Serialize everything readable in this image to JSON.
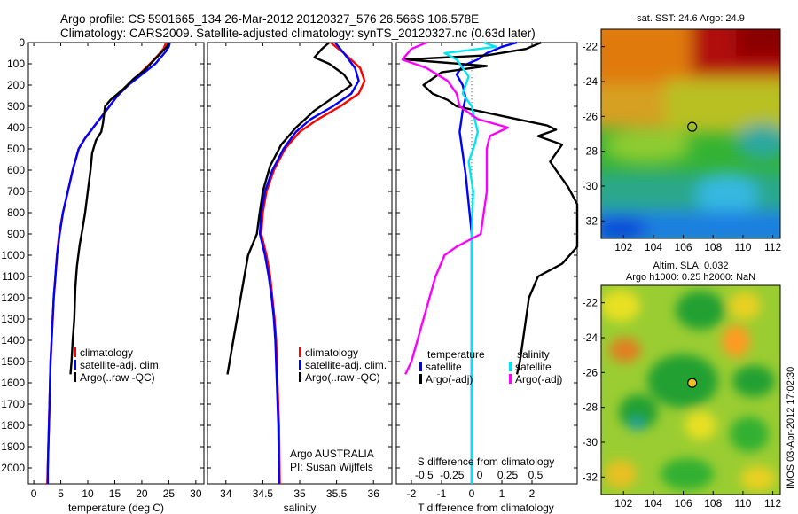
{
  "header": {
    "line1": "Argo profile: CS 5901665_134 26-Mar-2012 20120327_576 26.566S 106.578E",
    "line2": "Climatology: CARS2009. Satellite-adjusted climatology: synTS_20120327.nc (0.63d later)"
  },
  "colors": {
    "climatology": "#ff0000",
    "satellite": "#0000ff",
    "argo": "#000000",
    "sat_salinity": "#00e5ee",
    "argo_salinity": "#ff00ff"
  },
  "side_label": "IMOS 03-Apr-2012 17:02:30",
  "chart_data": [
    {
      "type": "line",
      "name": "temperature-profile",
      "xlabel": "temperature (deg C)",
      "ylim": [
        2075,
        0
      ],
      "xlim": [
        -1,
        31.5
      ],
      "xticks": [
        0,
        5,
        10,
        15,
        20,
        25,
        30
      ],
      "yticks": [
        0,
        100,
        200,
        300,
        400,
        500,
        600,
        700,
        800,
        900,
        1000,
        1100,
        1200,
        1300,
        1400,
        1500,
        1600,
        1700,
        1800,
        1900,
        2000
      ],
      "legend": [
        "climatology",
        "satellite-adj. clim.",
        "Argo(..raw -QC)"
      ],
      "series": [
        {
          "name": "climatology",
          "color": "#ff0000",
          "points": [
            [
              24.5,
              0
            ],
            [
              24,
              30
            ],
            [
              23,
              60
            ],
            [
              21.5,
              100
            ],
            [
              19.5,
              150
            ],
            [
              17.5,
              200
            ],
            [
              15.5,
              250
            ],
            [
              14,
              300
            ],
            [
              12.5,
              350
            ],
            [
              11,
              400
            ],
            [
              9.5,
              450
            ],
            [
              8.3,
              500
            ],
            [
              7.2,
              600
            ],
            [
              6.3,
              700
            ],
            [
              5.4,
              800
            ],
            [
              4.7,
              900
            ],
            [
              4.3,
              1000
            ],
            [
              4,
              1100
            ],
            [
              3.7,
              1200
            ],
            [
              3.5,
              1300
            ],
            [
              3.3,
              1400
            ],
            [
              3.1,
              1500
            ],
            [
              3,
              1600
            ],
            [
              2.9,
              1700
            ],
            [
              2.8,
              1800
            ],
            [
              2.7,
              1900
            ],
            [
              2.6,
              2000
            ],
            [
              2.5,
              2075
            ]
          ]
        },
        {
          "name": "satellite-adj. clim.",
          "color": "#0000ff",
          "points": [
            [
              25.2,
              0
            ],
            [
              25,
              20
            ],
            [
              24.5,
              40
            ],
            [
              23.5,
              70
            ],
            [
              22.5,
              100
            ],
            [
              20,
              150
            ],
            [
              17.5,
              200
            ],
            [
              15.5,
              250
            ],
            [
              14,
              300
            ],
            [
              12.5,
              350
            ],
            [
              11,
              400
            ],
            [
              9.5,
              450
            ],
            [
              8.3,
              500
            ],
            [
              7.2,
              600
            ],
            [
              6.3,
              700
            ],
            [
              5.4,
              800
            ],
            [
              4.8,
              900
            ],
            [
              4.3,
              1000
            ],
            [
              4,
              1100
            ],
            [
              3.7,
              1200
            ],
            [
              3.5,
              1300
            ],
            [
              3.3,
              1400
            ],
            [
              3.1,
              1500
            ],
            [
              3,
              1600
            ],
            [
              2.9,
              1700
            ],
            [
              2.8,
              1800
            ],
            [
              2.7,
              1900
            ],
            [
              2.6,
              2000
            ],
            [
              2.6,
              2075
            ]
          ]
        },
        {
          "name": "Argo(..raw -QC)",
          "color": "#000000",
          "points": [
            [
              25,
              0
            ],
            [
              24.6,
              20
            ],
            [
              23.5,
              50
            ],
            [
              22,
              90
            ],
            [
              20.5,
              130
            ],
            [
              18.5,
              170
            ],
            [
              16.5,
              220
            ],
            [
              14.2,
              270
            ],
            [
              13.2,
              300
            ],
            [
              12.8,
              380
            ],
            [
              12.5,
              420
            ],
            [
              11.5,
              460
            ],
            [
              10.8,
              520
            ],
            [
              10.5,
              600
            ],
            [
              10,
              700
            ],
            [
              9.5,
              800
            ],
            [
              9,
              880
            ],
            [
              8.5,
              950
            ],
            [
              8,
              1050
            ],
            [
              7.7,
              1150
            ],
            [
              7.5,
              1300
            ],
            [
              7.2,
              1400
            ],
            [
              7,
              1500
            ],
            [
              6.8,
              1560
            ]
          ]
        }
      ]
    },
    {
      "type": "line",
      "name": "salinity-profile",
      "xlabel": "salinity",
      "ylim": [
        2075,
        0
      ],
      "xlim": [
        33.75,
        36.25
      ],
      "xticks": [
        34,
        34.5,
        35,
        35.5,
        36
      ],
      "legend": [
        "climatology",
        "satellite-adj. clim.",
        "Argo(..raw -QC)"
      ],
      "annotation": [
        "Argo AUSTRALIA",
        "PI: Susan Wijffels"
      ],
      "series": [
        {
          "name": "climatology",
          "color": "#ff0000",
          "points": [
            [
              35.42,
              0
            ],
            [
              35.6,
              50
            ],
            [
              35.82,
              120
            ],
            [
              35.88,
              180
            ],
            [
              35.8,
              240
            ],
            [
              35.55,
              300
            ],
            [
              35.25,
              360
            ],
            [
              35.0,
              420
            ],
            [
              34.8,
              500
            ],
            [
              34.65,
              600
            ],
            [
              34.55,
              700
            ],
            [
              34.5,
              800
            ],
            [
              34.48,
              900
            ],
            [
              34.55,
              1000
            ],
            [
              34.6,
              1100
            ],
            [
              34.63,
              1200
            ],
            [
              34.66,
              1300
            ],
            [
              34.68,
              1400
            ],
            [
              34.7,
              1600
            ],
            [
              34.72,
              1800
            ],
            [
              34.73,
              2075
            ]
          ]
        },
        {
          "name": "satellite-adj. clim.",
          "color": "#0000ff",
          "points": [
            [
              35.48,
              0
            ],
            [
              35.6,
              50
            ],
            [
              35.75,
              120
            ],
            [
              35.8,
              180
            ],
            [
              35.7,
              240
            ],
            [
              35.45,
              300
            ],
            [
              35.15,
              360
            ],
            [
              34.95,
              420
            ],
            [
              34.78,
              500
            ],
            [
              34.63,
              600
            ],
            [
              34.53,
              700
            ],
            [
              34.48,
              800
            ],
            [
              34.46,
              900
            ],
            [
              34.53,
              1000
            ],
            [
              34.58,
              1100
            ],
            [
              34.62,
              1200
            ],
            [
              34.65,
              1300
            ],
            [
              34.67,
              1400
            ],
            [
              34.69,
              1600
            ],
            [
              34.71,
              1800
            ],
            [
              34.72,
              2075
            ]
          ]
        },
        {
          "name": "Argo(..raw -QC)",
          "color": "#000000",
          "points": [
            [
              35.4,
              0
            ],
            [
              35.3,
              30
            ],
            [
              35.2,
              70
            ],
            [
              35.4,
              100
            ],
            [
              35.6,
              150
            ],
            [
              35.7,
              200
            ],
            [
              35.45,
              260
            ],
            [
              35.2,
              320
            ],
            [
              34.95,
              400
            ],
            [
              34.75,
              480
            ],
            [
              34.6,
              580
            ],
            [
              34.5,
              700
            ],
            [
              34.45,
              820
            ],
            [
              34.42,
              900
            ],
            [
              34.3,
              1000
            ],
            [
              34.25,
              1100
            ],
            [
              34.2,
              1200
            ],
            [
              34.15,
              1300
            ],
            [
              34.1,
              1400
            ],
            [
              34.05,
              1500
            ],
            [
              34.02,
              1560
            ]
          ]
        }
      ]
    },
    {
      "type": "line",
      "name": "difference-profile",
      "xlabel": "T difference from climatology",
      "xlabel_top": "S difference from climatology",
      "ylim": [
        2075,
        0
      ],
      "xlim": [
        -2.5,
        3.5
      ],
      "xticks": [
        -2,
        -1,
        0,
        1,
        2
      ],
      "xtick_labels": [
        "-2",
        "-1",
        "0",
        "1",
        "2"
      ],
      "top_ticks": [
        -0.5,
        -0.25,
        0,
        0.25,
        0.5
      ],
      "top_tick_labels": [
        "-0.5",
        "-0.25",
        "0",
        "0.25",
        "0.5"
      ],
      "legend_left_title": "temperature",
      "legend_right_title": "salinity",
      "legend": [
        "satellite",
        "Argo(-adj)",
        "satellite",
        "Argo(-adj)"
      ],
      "series": [
        {
          "name": "T satellite",
          "color": "#0000ff",
          "points": [
            [
              1.5,
              0
            ],
            [
              1,
              20
            ],
            [
              0.5,
              50
            ],
            [
              0.2,
              80
            ],
            [
              -0.3,
              110
            ],
            [
              -0.5,
              150
            ],
            [
              -0.3,
              200
            ],
            [
              -0.2,
              260
            ],
            [
              -0.3,
              320
            ],
            [
              -0.4,
              420
            ],
            [
              -0.3,
              520
            ],
            [
              -0.2,
              620
            ],
            [
              -0.1,
              760
            ],
            [
              0,
              900
            ],
            [
              0,
              1100
            ],
            [
              0,
              2075
            ]
          ]
        },
        {
          "name": "T Argo(-adj)",
          "color": "#000000",
          "points": [
            [
              2.3,
              0
            ],
            [
              1.8,
              30
            ],
            [
              0.5,
              60
            ],
            [
              -2.2,
              80
            ],
            [
              0.5,
              110
            ],
            [
              -1.0,
              140
            ],
            [
              -1.2,
              160
            ],
            [
              -1.6,
              200
            ],
            [
              -1.3,
              240
            ],
            [
              -0.8,
              270
            ],
            [
              -0.5,
              300
            ],
            [
              0.5,
              330
            ],
            [
              1.5,
              360
            ],
            [
              2.5,
              390
            ],
            [
              2.8,
              410
            ],
            [
              2.2,
              440
            ],
            [
              3.0,
              480
            ],
            [
              2.8,
              520
            ],
            [
              2.6,
              560
            ],
            [
              3.2,
              680
            ],
            [
              3.5,
              760
            ],
            [
              3.5,
              960
            ],
            [
              3.0,
              1040
            ],
            [
              2.2,
              1100
            ],
            [
              1.9,
              1200
            ],
            [
              1.8,
              1300
            ],
            [
              1.7,
              1400
            ],
            [
              1.6,
              1500
            ],
            [
              1.5,
              1560
            ]
          ]
        },
        {
          "name": "S satellite",
          "color": "#00e5ee",
          "points": [
            [
              0.4,
              0
            ],
            [
              0.8,
              20
            ],
            [
              -0.9,
              50
            ],
            [
              -0.5,
              80
            ],
            [
              -0.3,
              120
            ],
            [
              -0.1,
              160
            ],
            [
              -0.2,
              200
            ],
            [
              -0.3,
              240
            ],
            [
              0,
              300
            ],
            [
              0.1,
              360
            ],
            [
              0.2,
              420
            ],
            [
              0.1,
              480
            ],
            [
              -0.1,
              560
            ],
            [
              0.05,
              700
            ],
            [
              0,
              900
            ],
            [
              0,
              1100
            ],
            [
              0,
              2075
            ]
          ]
        },
        {
          "name": "S Argo(-adj)",
          "color": "#ff00ff",
          "points": [
            [
              -1.5,
              0
            ],
            [
              -2.0,
              30
            ],
            [
              -2.3,
              80
            ],
            [
              -1.5,
              120
            ],
            [
              -0.8,
              180
            ],
            [
              -0.5,
              240
            ],
            [
              -0.4,
              300
            ],
            [
              0.2,
              360
            ],
            [
              1.2,
              400
            ],
            [
              0.6,
              440
            ],
            [
              0.5,
              500
            ],
            [
              0.5,
              700
            ],
            [
              0.4,
              800
            ],
            [
              0.3,
              900
            ],
            [
              -0.5,
              960
            ],
            [
              -0.9,
              1000
            ],
            [
              -1.2,
              1100
            ],
            [
              -1.4,
              1200
            ],
            [
              -1.6,
              1300
            ],
            [
              -1.8,
              1400
            ],
            [
              -2.0,
              1500
            ],
            [
              -2.2,
              1560
            ]
          ]
        }
      ]
    },
    {
      "type": "heatmap",
      "name": "sst-map",
      "title": "sat. SST: 24.6 Argo: 24.9",
      "xlim": [
        100.5,
        112.5
      ],
      "ylim": [
        -33,
        -21
      ],
      "xticks": [
        102,
        104,
        106,
        108,
        110,
        112
      ],
      "yticks": [
        -22,
        -24,
        -26,
        -28,
        -30,
        -32
      ],
      "marker": [
        106.6,
        -26.6
      ]
    },
    {
      "type": "heatmap",
      "name": "sla-map",
      "title_line1": "Altim. SLA: 0.032",
      "title_line2": "Argo h1000: 0.25 h2000: NaN",
      "xlim": [
        100.5,
        112.5
      ],
      "ylim": [
        -33,
        -21
      ],
      "xticks": [
        102,
        104,
        106,
        108,
        110,
        112
      ],
      "yticks": [
        -22,
        -24,
        -26,
        -28,
        -30,
        -32
      ],
      "marker": [
        106.6,
        -26.6
      ]
    }
  ]
}
